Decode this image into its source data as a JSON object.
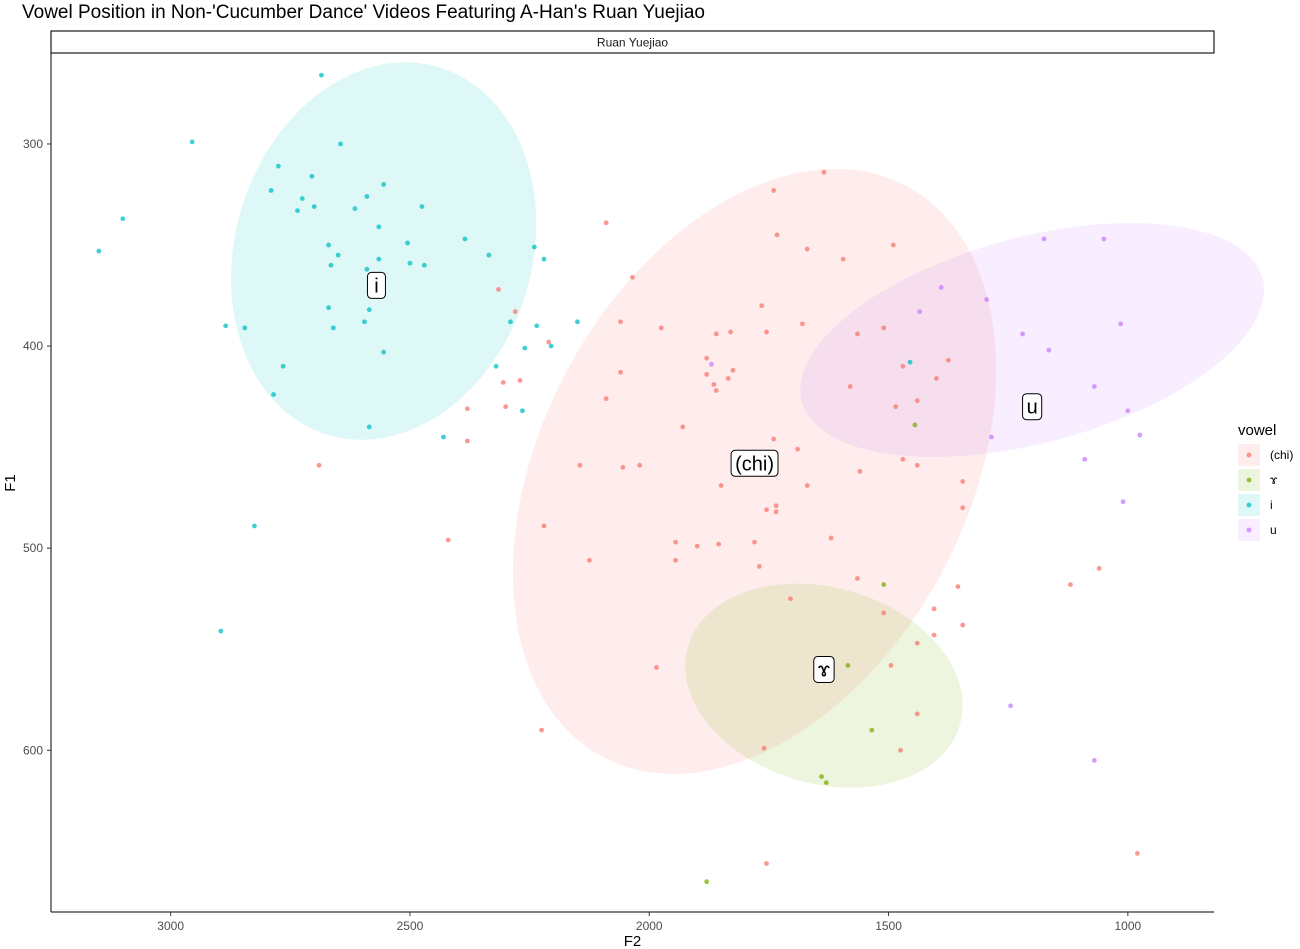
{
  "chart_data": {
    "type": "scatter",
    "title": "Vowel Position in Non-'Cucumber Dance' Videos Featuring A-Han's Ruan Yuejiao",
    "facet_label": "Ruan Yuejiao",
    "xlabel": "F2",
    "ylabel": "F1",
    "x_reversed": true,
    "y_reversed": true,
    "xlim": [
      3250,
      820
    ],
    "ylim": [
      255,
      680
    ],
    "x_ticks": [
      3000,
      2500,
      2000,
      1500,
      1000
    ],
    "y_ticks": [
      300,
      400,
      500,
      600
    ],
    "grid": false,
    "legend": {
      "title": "vowel",
      "position": "right"
    },
    "series": [
      {
        "name": "(chi)",
        "color": "#F8766D",
        "ellipse": {
          "cx": 1780,
          "cy": 462,
          "rx": 445,
          "ry": 160,
          "angle_deg": 28
        },
        "centroid_label": {
          "text": "(chi)",
          "x": 1780,
          "y": 458
        },
        "points": [
          [
            1635,
            314
          ],
          [
            1740,
            323
          ],
          [
            1733,
            345
          ],
          [
            1670,
            352
          ],
          [
            1595,
            357
          ],
          [
            1490,
            350
          ],
          [
            2090,
            339
          ],
          [
            2035,
            366
          ],
          [
            2315,
            372
          ],
          [
            2280,
            383
          ],
          [
            2210,
            398
          ],
          [
            2060,
            388
          ],
          [
            1975,
            391
          ],
          [
            1860,
            394
          ],
          [
            1830,
            393
          ],
          [
            1765,
            380
          ],
          [
            1755,
            393
          ],
          [
            1680,
            389
          ],
          [
            1565,
            394
          ],
          [
            1510,
            391
          ],
          [
            1470,
            410
          ],
          [
            1440,
            427
          ],
          [
            1375,
            407
          ],
          [
            1400,
            416
          ],
          [
            1880,
            406
          ],
          [
            1880,
            414
          ],
          [
            1865,
            419
          ],
          [
            1860,
            422
          ],
          [
            1835,
            416
          ],
          [
            1825,
            412
          ],
          [
            2060,
            413
          ],
          [
            2090,
            426
          ],
          [
            2270,
            417
          ],
          [
            2305,
            418
          ],
          [
            2300,
            430
          ],
          [
            2380,
            431
          ],
          [
            1485,
            430
          ],
          [
            1580,
            420
          ],
          [
            1930,
            440
          ],
          [
            1740,
            446
          ],
          [
            1690,
            451
          ],
          [
            2380,
            447
          ],
          [
            2690,
            459
          ],
          [
            2145,
            459
          ],
          [
            2055,
            460
          ],
          [
            2020,
            459
          ],
          [
            1560,
            462
          ],
          [
            1470,
            456
          ],
          [
            1440,
            459
          ],
          [
            1345,
            467
          ],
          [
            1850,
            469
          ],
          [
            1670,
            469
          ],
          [
            1735,
            479
          ],
          [
            1735,
            482
          ],
          [
            1755,
            481
          ],
          [
            1345,
            480
          ],
          [
            2420,
            496
          ],
          [
            2220,
            489
          ],
          [
            2125,
            506
          ],
          [
            1945,
            497
          ],
          [
            1945,
            506
          ],
          [
            1900,
            499
          ],
          [
            1855,
            498
          ],
          [
            1780,
            497
          ],
          [
            1770,
            509
          ],
          [
            1620,
            495
          ],
          [
            1565,
            515
          ],
          [
            1705,
            525
          ],
          [
            1355,
            519
          ],
          [
            1510,
            532
          ],
          [
            1405,
            530
          ],
          [
            1345,
            538
          ],
          [
            1405,
            543
          ],
          [
            1440,
            547
          ],
          [
            1985,
            559
          ],
          [
            1495,
            558
          ],
          [
            2225,
            590
          ],
          [
            1440,
            582
          ],
          [
            1760,
            599
          ],
          [
            1475,
            600
          ],
          [
            1755,
            656
          ],
          [
            980,
            651
          ],
          [
            1120,
            518
          ],
          [
            1060,
            510
          ]
        ]
      },
      {
        "name": "ɤ",
        "color": "#7CAE00",
        "ellipse": {
          "cx": 1635,
          "cy": 568,
          "rx": 205,
          "ry": 70,
          "angle_deg": -74
        },
        "centroid_label": {
          "text": "ɤ",
          "x": 1635,
          "y": 560
        },
        "points": [
          [
            1445,
            439
          ],
          [
            1815,
            460
          ],
          [
            1510,
            518
          ],
          [
            1585,
            558
          ],
          [
            1535,
            590
          ],
          [
            1640,
            613
          ],
          [
            1630,
            616
          ],
          [
            1880,
            665
          ]
        ]
      },
      {
        "name": "i",
        "color": "#00BFC4",
        "ellipse": {
          "cx": 2555,
          "cy": 353,
          "rx": 310,
          "ry": 95,
          "angle_deg": 17
        },
        "centroid_label": {
          "text": "i",
          "x": 2570,
          "y": 370
        },
        "points": [
          [
            2685,
            266
          ],
          [
            2955,
            299
          ],
          [
            2645,
            300
          ],
          [
            2775,
            311
          ],
          [
            2705,
            316
          ],
          [
            2790,
            323
          ],
          [
            2555,
            320
          ],
          [
            2725,
            327
          ],
          [
            2590,
            326
          ],
          [
            2700,
            331
          ],
          [
            2735,
            333
          ],
          [
            2615,
            332
          ],
          [
            2475,
            331
          ],
          [
            2565,
            341
          ],
          [
            3100,
            337
          ],
          [
            3150,
            353
          ],
          [
            2670,
            350
          ],
          [
            2650,
            355
          ],
          [
            2565,
            357
          ],
          [
            2500,
            359
          ],
          [
            2470,
            360
          ],
          [
            2665,
            360
          ],
          [
            2505,
            349
          ],
          [
            2385,
            347
          ],
          [
            2335,
            355
          ],
          [
            2240,
            351
          ],
          [
            2220,
            357
          ],
          [
            2590,
            362
          ],
          [
            2560,
            371
          ],
          [
            2670,
            381
          ],
          [
            2585,
            382
          ],
          [
            2885,
            390
          ],
          [
            2845,
            391
          ],
          [
            2660,
            391
          ],
          [
            2595,
            388
          ],
          [
            2290,
            388
          ],
          [
            2235,
            390
          ],
          [
            2150,
            388
          ],
          [
            2555,
            403
          ],
          [
            2260,
            401
          ],
          [
            2205,
            400
          ],
          [
            2320,
            410
          ],
          [
            2765,
            410
          ],
          [
            2785,
            424
          ],
          [
            2265,
            432
          ],
          [
            2585,
            440
          ],
          [
            2430,
            445
          ],
          [
            2825,
            489
          ],
          [
            2895,
            541
          ],
          [
            1455,
            408
          ]
        ]
      },
      {
        "name": "u",
        "color": "#C77CFF",
        "ellipse": {
          "cx": 1200,
          "cy": 397,
          "rx": 215,
          "ry": 118,
          "angle_deg": 75
        },
        "centroid_label": {
          "text": "u",
          "x": 1200,
          "y": 430
        },
        "points": [
          [
            1175,
            347
          ],
          [
            1050,
            347
          ],
          [
            1390,
            371
          ],
          [
            1295,
            377
          ],
          [
            1435,
            383
          ],
          [
            1015,
            389
          ],
          [
            1220,
            394
          ],
          [
            1165,
            402
          ],
          [
            1070,
            420
          ],
          [
            1000,
            432
          ],
          [
            1200,
            435
          ],
          [
            1285,
            445
          ],
          [
            975,
            444
          ],
          [
            1090,
            456
          ],
          [
            1010,
            477
          ],
          [
            1245,
            578
          ],
          [
            1070,
            605
          ],
          [
            1870,
            409
          ]
        ]
      }
    ]
  }
}
